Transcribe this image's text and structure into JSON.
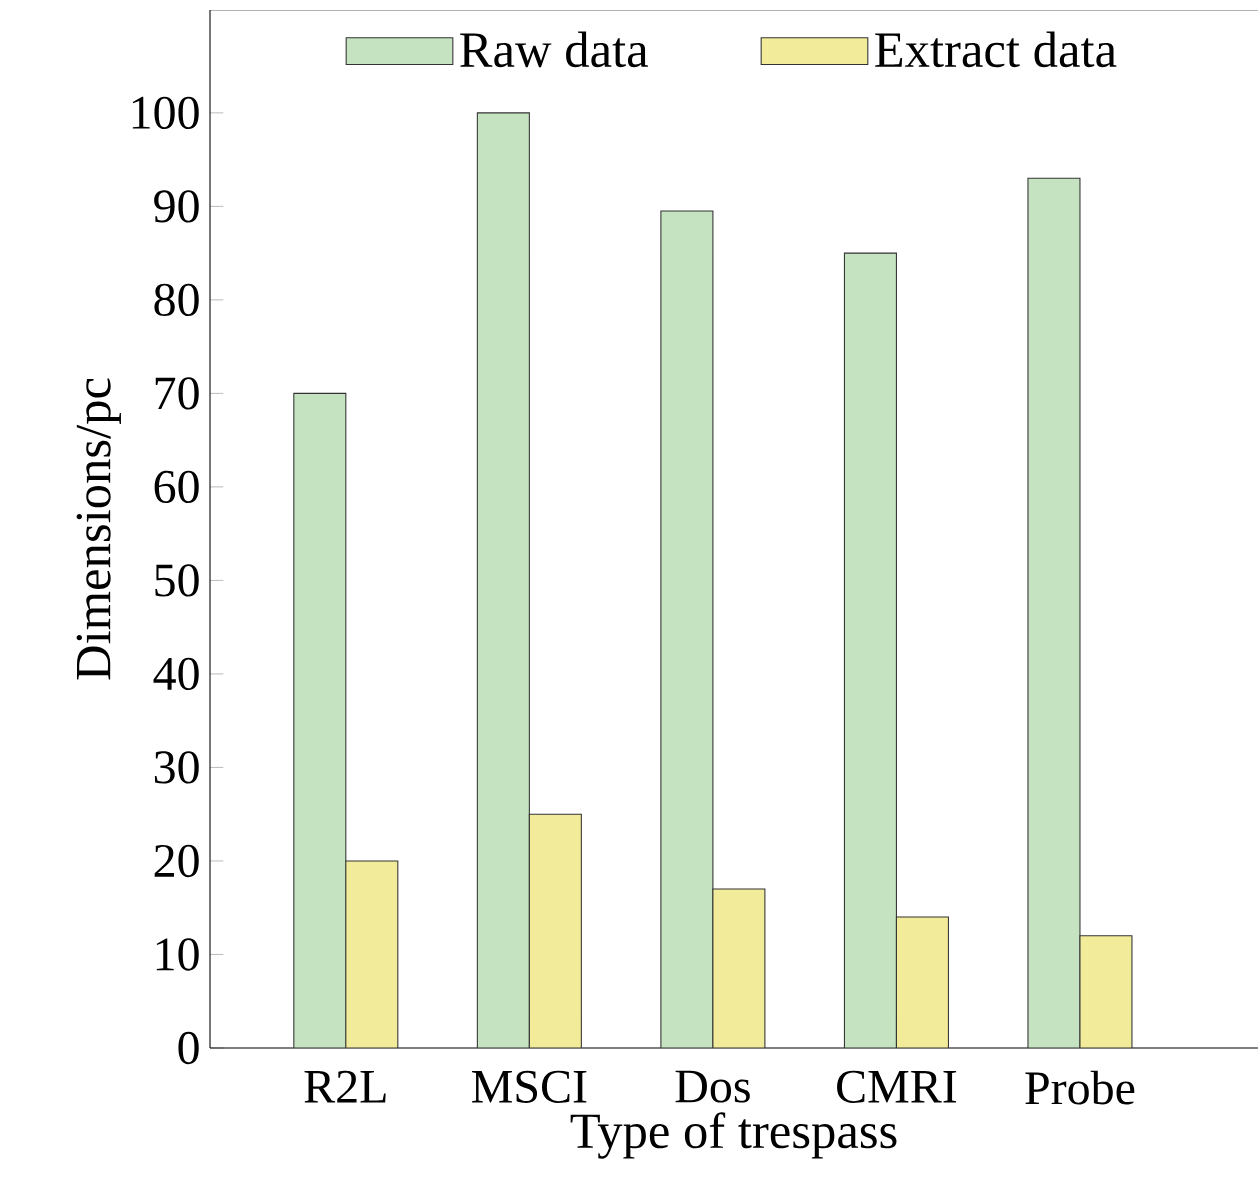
{
  "chart_data": {
    "type": "bar",
    "xlabel": "Type of trespass",
    "ylabel": "Dimensions/pc",
    "categories": [
      "R2L",
      "MSCI",
      "Dos",
      "CMRI",
      "Probe"
    ],
    "series": [
      {
        "name": "Raw data",
        "color": "#c5e3c0",
        "values": [
          70,
          100,
          89.5,
          85,
          93
        ]
      },
      {
        "name": "Extract data",
        "color": "#f2ec9a",
        "values": [
          20,
          25,
          17,
          14,
          12
        ]
      }
    ],
    "ylim": [
      0,
      111
    ],
    "yticks": [
      0,
      10,
      20,
      30,
      40,
      50,
      60,
      70,
      80,
      90,
      100
    ],
    "legend": "top"
  }
}
